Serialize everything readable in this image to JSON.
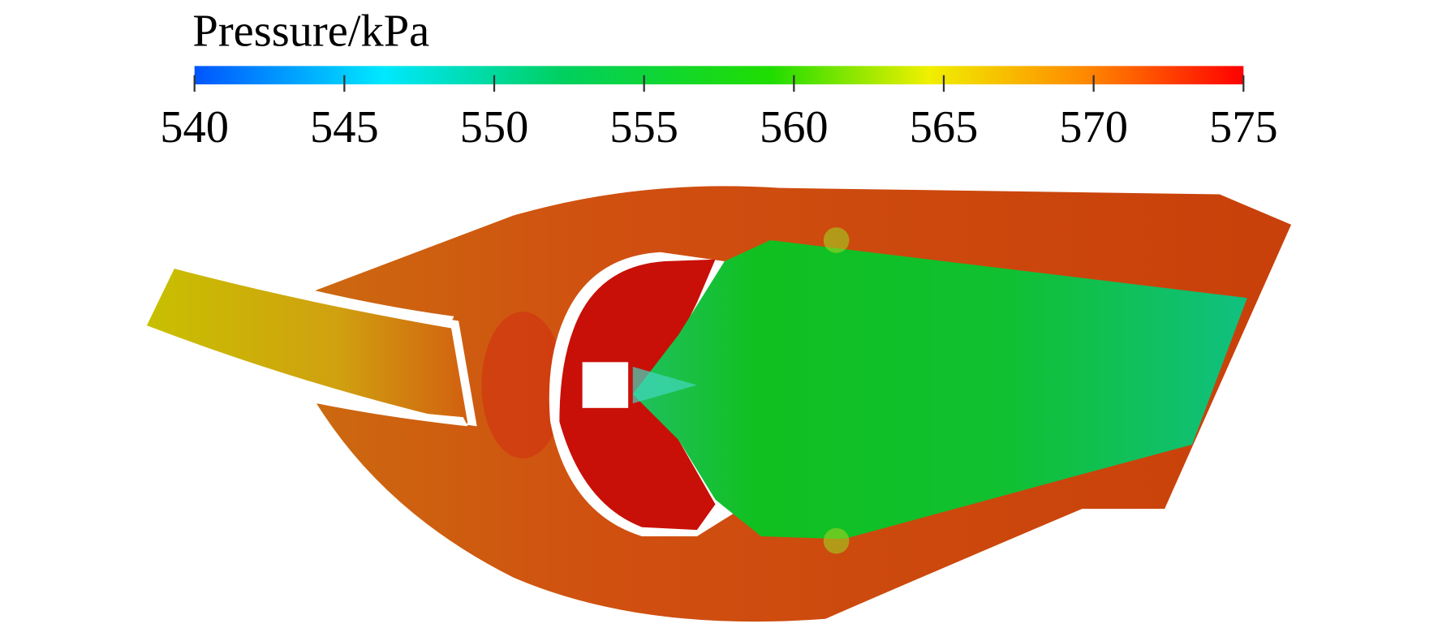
{
  "colorbar": {
    "title": "Pressure/kPa",
    "range": [
      540,
      575
    ],
    "ticks": [
      540,
      545,
      550,
      555,
      560,
      565,
      570,
      575
    ]
  }
}
